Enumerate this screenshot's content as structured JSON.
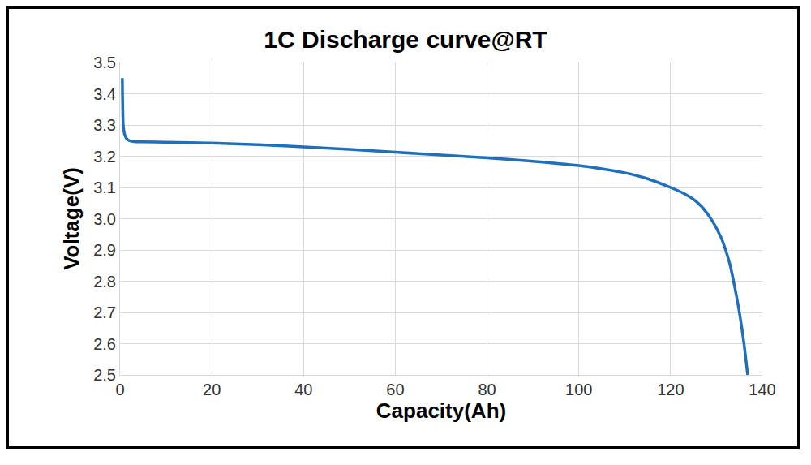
{
  "chart_data": {
    "type": "line",
    "title": "1C Discharge curve@RT",
    "x_label": "Capacity(Ah)",
    "y_label": "Voltage(V)",
    "x": [
      0.5,
      0.7,
      1,
      1.5,
      2,
      3,
      5,
      10,
      20,
      30,
      40,
      50,
      60,
      70,
      80,
      90,
      100,
      105,
      110,
      115,
      120,
      123,
      125,
      127,
      129,
      131,
      132,
      133,
      134,
      135,
      136,
      136.8
    ],
    "values": [
      3.45,
      3.3,
      3.27,
      3.255,
      3.25,
      3.247,
      3.246,
      3.245,
      3.242,
      3.237,
      3.23,
      3.222,
      3.213,
      3.204,
      3.195,
      3.184,
      3.17,
      3.16,
      3.147,
      3.128,
      3.1,
      3.08,
      3.062,
      3.035,
      2.995,
      2.94,
      2.9,
      2.85,
      2.78,
      2.7,
      2.6,
      2.5
    ],
    "color": "#1f6fba",
    "xlim": [
      0,
      140
    ],
    "xticks": [
      0,
      20,
      40,
      60,
      80,
      100,
      120,
      140
    ],
    "ylim": [
      2.5,
      3.5
    ],
    "yticks": [
      2.5,
      2.6,
      2.7,
      2.8,
      2.9,
      {
        "value": 3,
        "label": "3.0"
      },
      3.1,
      3.2,
      3.3,
      3.4,
      3.5
    ],
    "grid": true
  }
}
